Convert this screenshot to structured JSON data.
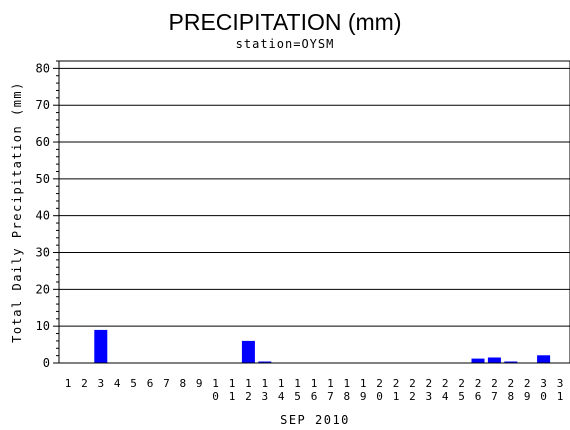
{
  "chart_data": {
    "type": "bar",
    "title": "PRECIPITATION (mm)",
    "subtitle": "station=OYSM",
    "xlabel": "SEP 2010",
    "ylabel": "Total Daily Precipitation (mm)",
    "ylim": [
      0,
      82
    ],
    "yticks": [
      0,
      10,
      20,
      30,
      40,
      50,
      60,
      70,
      80
    ],
    "grid": true,
    "bar_color": "#0000ff",
    "categories": [
      [
        "1"
      ],
      [
        "2"
      ],
      [
        "3"
      ],
      [
        "4"
      ],
      [
        "5"
      ],
      [
        "6"
      ],
      [
        "7"
      ],
      [
        "8"
      ],
      [
        "9"
      ],
      [
        "1",
        "0"
      ],
      [
        "1",
        "1"
      ],
      [
        "1",
        "2"
      ],
      [
        "1",
        "3"
      ],
      [
        "1",
        "4"
      ],
      [
        "1",
        "5"
      ],
      [
        "1",
        "6"
      ],
      [
        "1",
        "7"
      ],
      [
        "1",
        "8"
      ],
      [
        "1",
        "9"
      ],
      [
        "2",
        "0"
      ],
      [
        "2",
        "1"
      ],
      [
        "2",
        "2"
      ],
      [
        "2",
        "3"
      ],
      [
        "2",
        "4"
      ],
      [
        "2",
        "5"
      ],
      [
        "2",
        "6"
      ],
      [
        "2",
        "7"
      ],
      [
        "2",
        "8"
      ],
      [
        "2",
        "9"
      ],
      [
        "3",
        "0"
      ],
      [
        "3",
        "1"
      ]
    ],
    "values": [
      0,
      0,
      9,
      0,
      0,
      0,
      0,
      0,
      0,
      0,
      0,
      6,
      0.4,
      0,
      0,
      0,
      0,
      0,
      0,
      0,
      0,
      0,
      0,
      0,
      0,
      1.2,
      1.5,
      0.4,
      0,
      2.1,
      0
    ]
  }
}
